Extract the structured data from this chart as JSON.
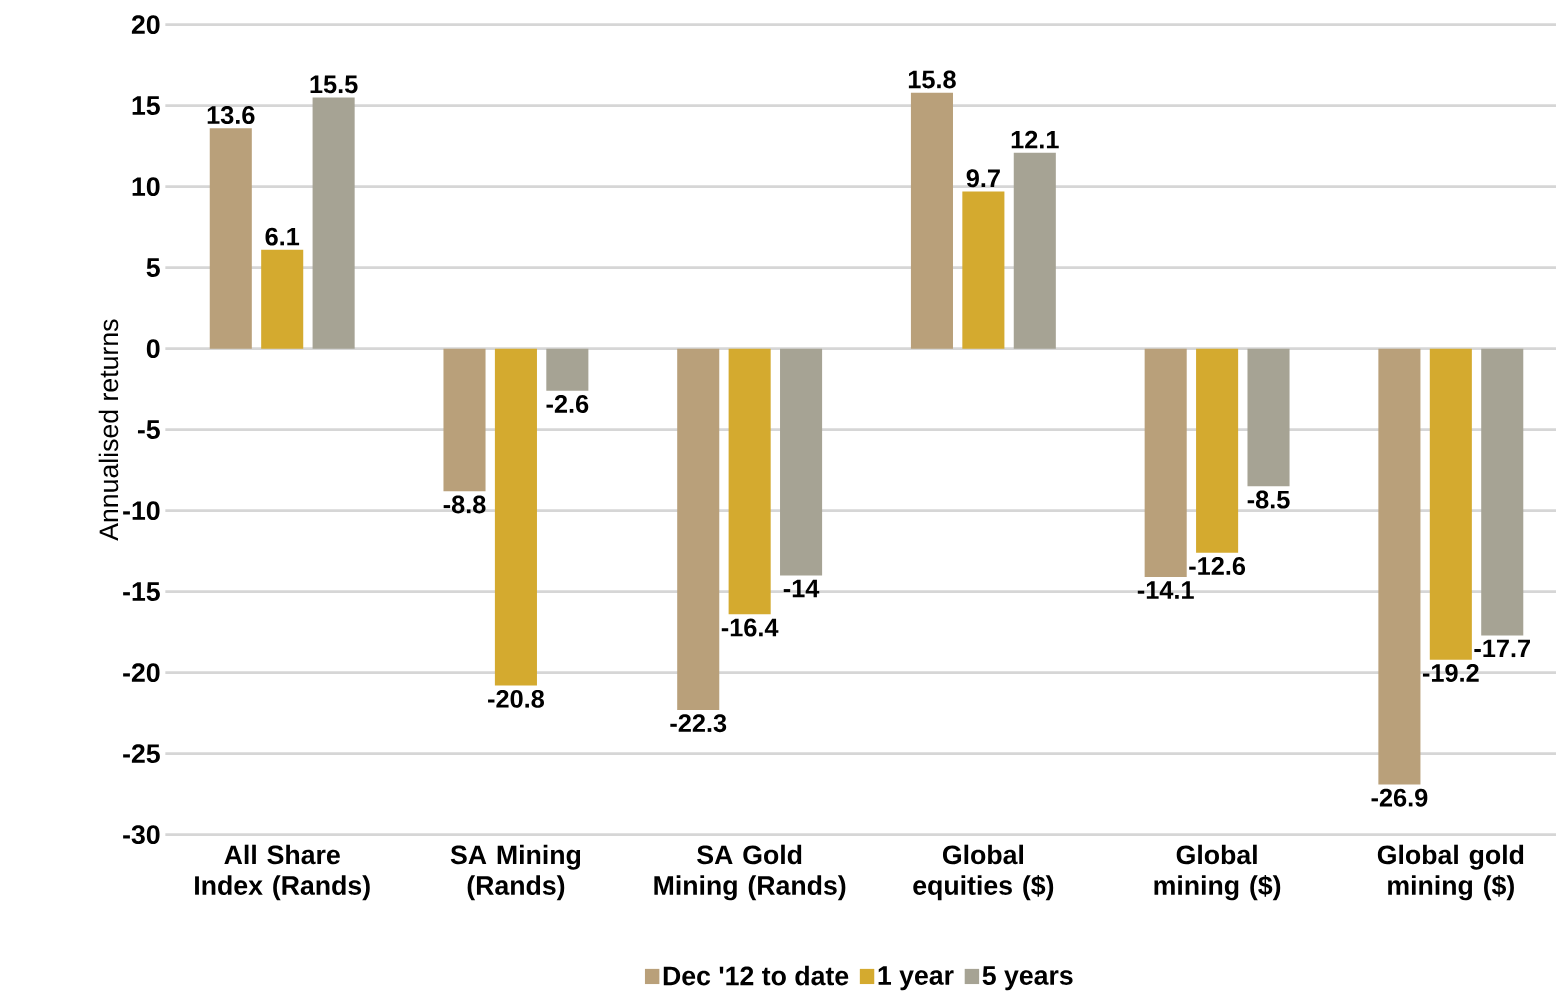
{
  "chart_data": {
    "type": "bar",
    "ylabel": "Annualised returns",
    "categories": [
      "All Share Index (Rands)",
      "SA Mining (Rands)",
      "SA Gold Mining (Rands)",
      "Global equities ($)",
      "Global mining ($)",
      "Global gold mining ($)"
    ],
    "series": [
      {
        "name": "Dec '12 to date",
        "color": "#b9a07a",
        "values": [
          13.6,
          -8.8,
          -22.3,
          15.8,
          -14.1,
          -26.9
        ]
      },
      {
        "name": "1 year",
        "color": "#d4aa2f",
        "values": [
          6.1,
          -20.8,
          -16.4,
          9.7,
          -12.6,
          -19.2
        ]
      },
      {
        "name": "5 years",
        "color": "#a6a394",
        "values": [
          15.5,
          -2.6,
          -14,
          12.1,
          -8.5,
          -17.7
        ]
      }
    ],
    "ylim": [
      -30,
      20
    ],
    "yticks": [
      -30,
      -25,
      -20,
      -15,
      -10,
      -5,
      0,
      5,
      10,
      15,
      20
    ],
    "grid": "y",
    "legend": "bottom",
    "data_labels": true
  }
}
